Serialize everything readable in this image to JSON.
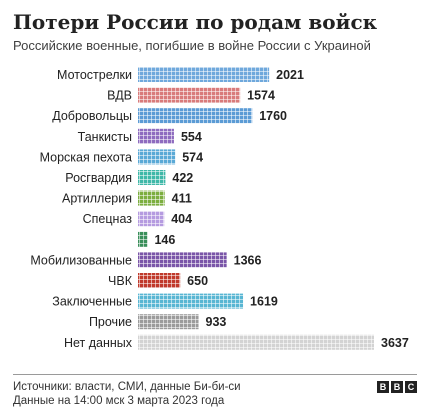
{
  "header": {
    "title": "Потери России по родам войск",
    "subtitle": "Российские военные, погибшие в войне России с Украиной"
  },
  "footer": {
    "source": "Источники: власти, СМИ, данные Би-би-си",
    "date": "Данные на 14:00 мск 3 марта 2023 года",
    "logo_letters": [
      "B",
      "B",
      "C"
    ]
  },
  "chart_data": {
    "type": "bar",
    "orientation": "horizontal",
    "categories": [
      "Мотострелки",
      "ВДВ",
      "Добровольцы",
      "Танкисты",
      "Морская пехота",
      "Росгвардия",
      "Артиллерия",
      "Спецназ",
      "",
      "Мобилизованные",
      "ЧВК",
      "Заключенные",
      "Прочие",
      "Нет данных"
    ],
    "values": [
      2021,
      1574,
      1760,
      554,
      574,
      422,
      411,
      404,
      146,
      1366,
      650,
      1619,
      933,
      3637
    ],
    "colors": [
      "#6fa8dc",
      "#d97b7b",
      "#5b9bd5",
      "#8e6bbf",
      "#5aa9d6",
      "#3fb8a8",
      "#7cae3f",
      "#b59be0",
      "#3a8f5a",
      "#7a55a8",
      "#c0392b",
      "#58b6d3",
      "#9b9b9b",
      "#d3d3d3"
    ],
    "xlim": [
      0,
      3637
    ],
    "grid": false,
    "legend": "none"
  }
}
